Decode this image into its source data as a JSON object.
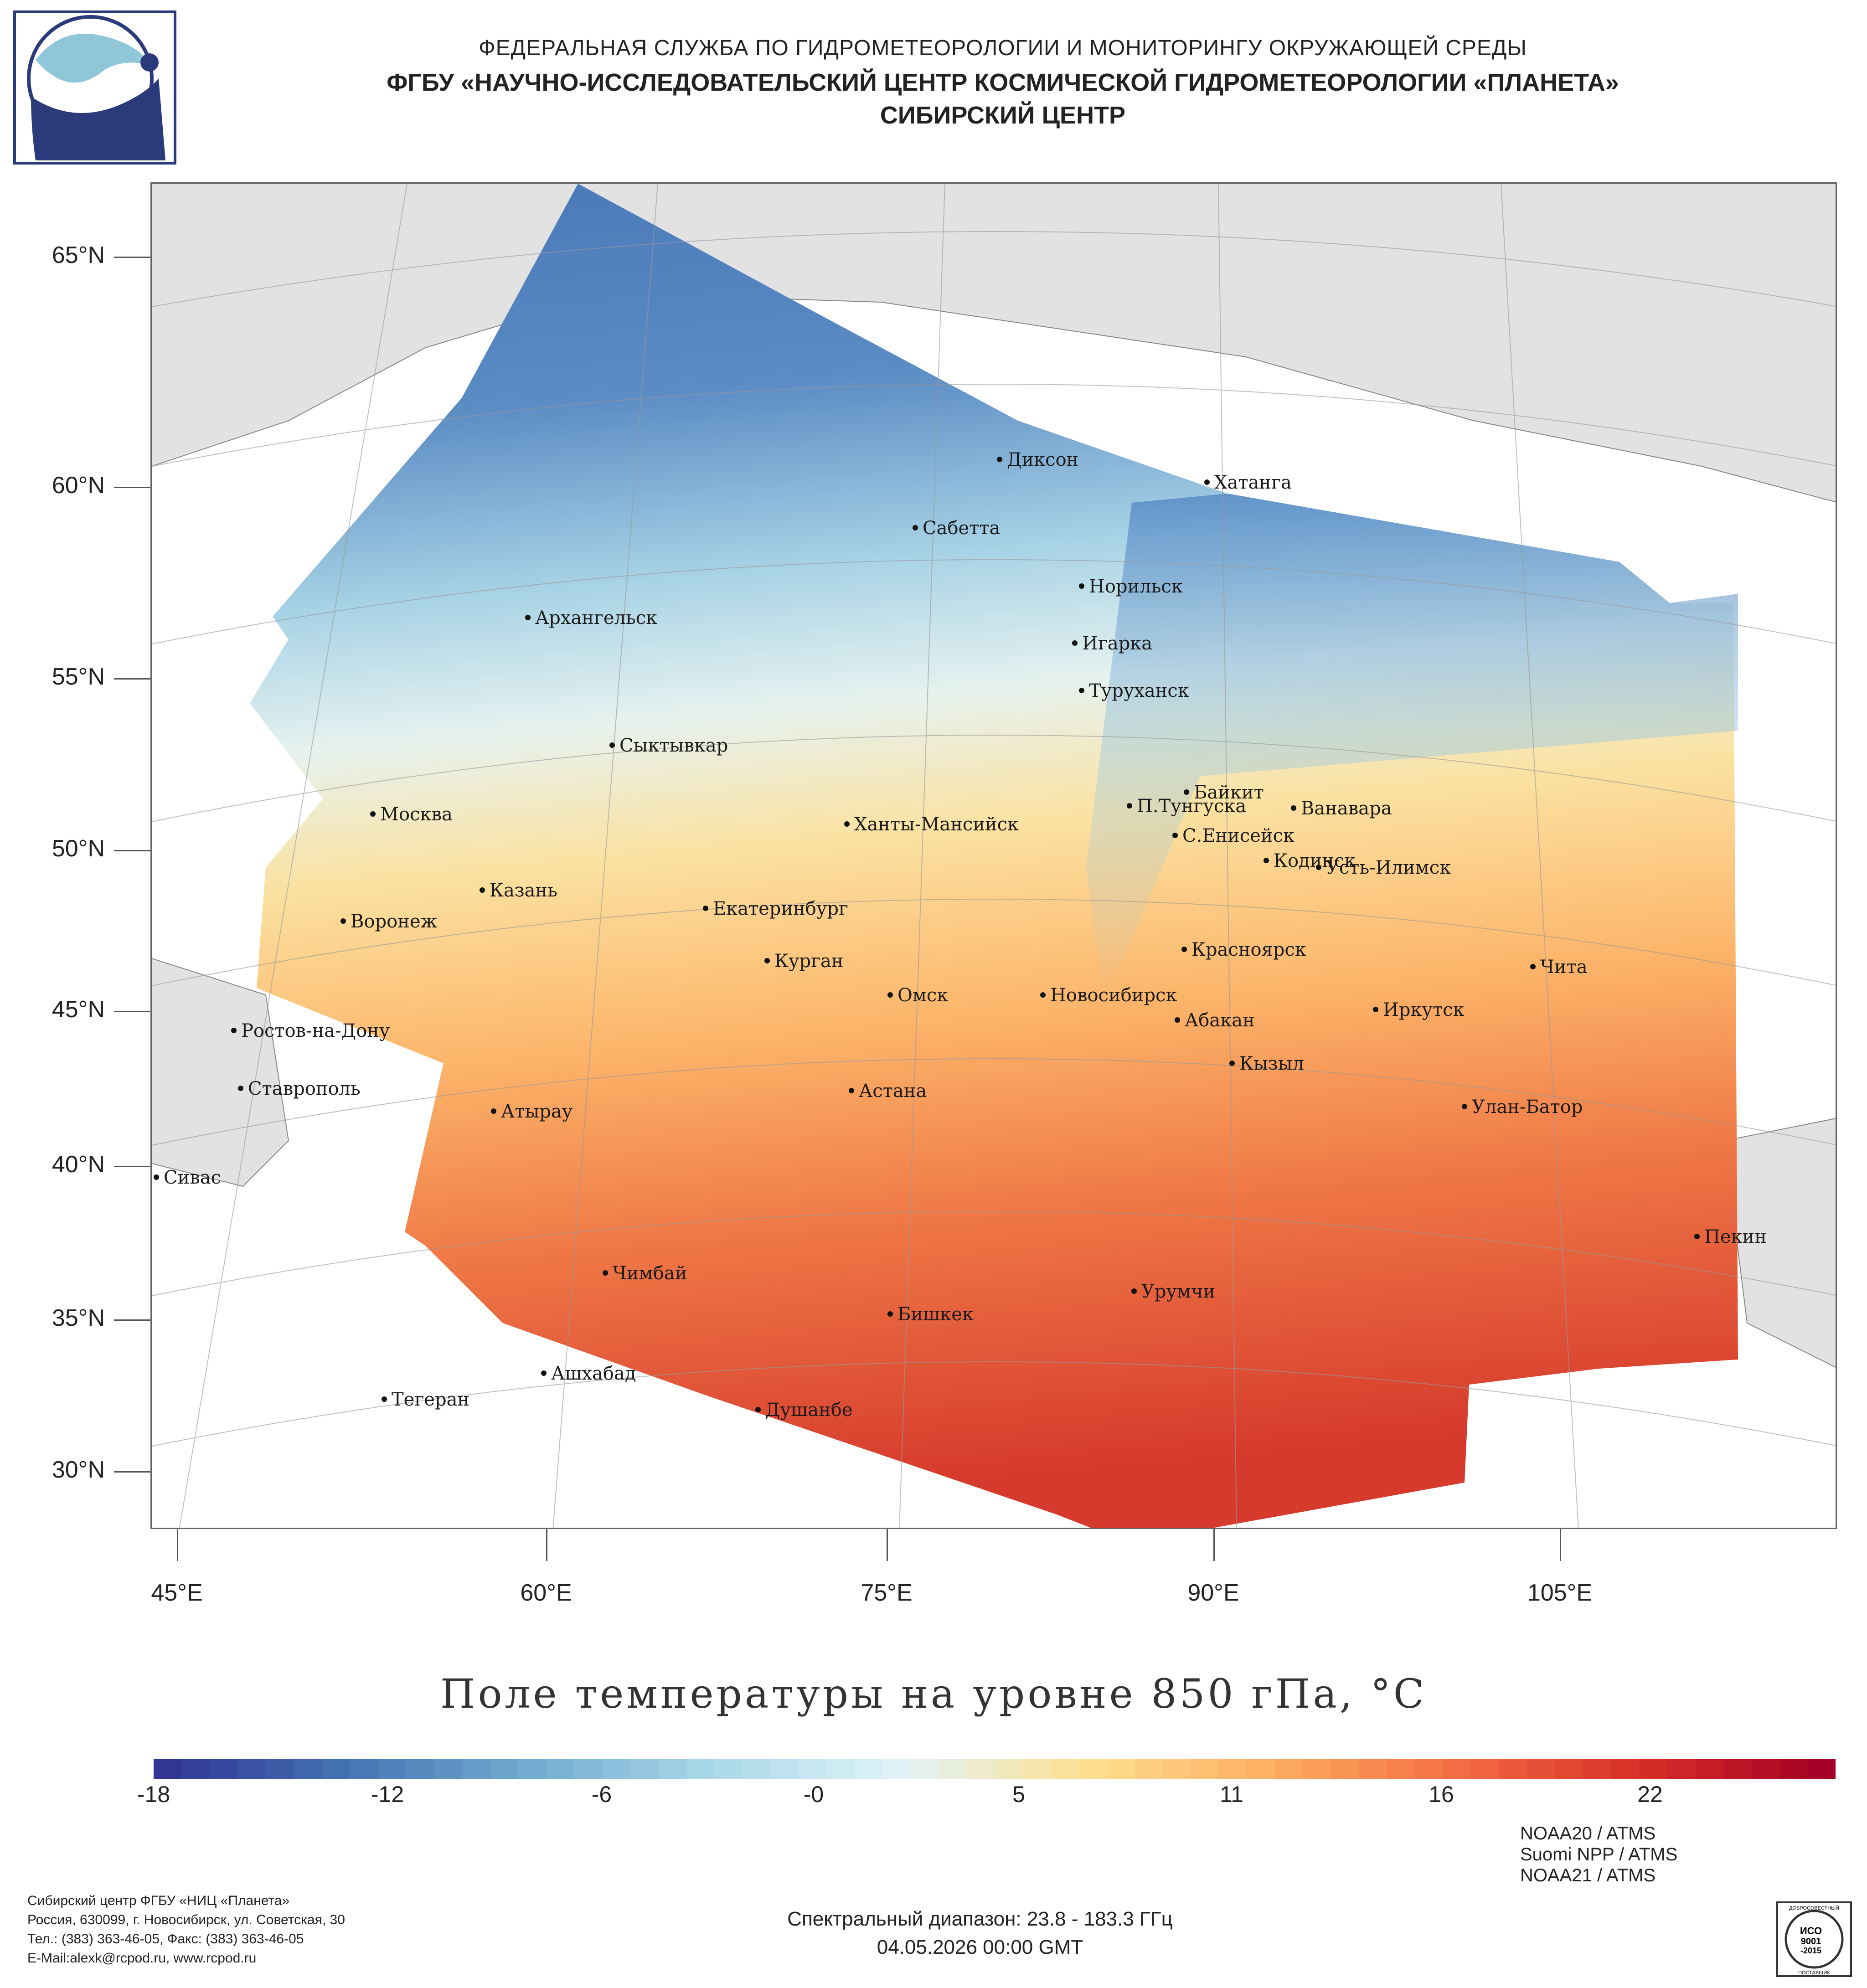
{
  "header": {
    "line1": "ФЕДЕРАЛЬНАЯ СЛУЖБА ПО ГИДРОМЕТЕОРОЛОГИИ И МОНИТОРИНГУ ОКРУЖАЮЩЕЙ СРЕДЫ",
    "line2": "ФГБУ «НАУЧНО-ИССЛЕДОВАТЕЛЬСКИЙ ЦЕНТР КОСМИЧЕСКОЙ ГИДРОМЕТЕОРОЛОГИИ «ПЛАНЕТА»",
    "line3": "СИБИРСКИЙ ЦЕНТР"
  },
  "map": {
    "lat_labels": [
      "65°N",
      "60°N",
      "55°N",
      "50°N",
      "45°N",
      "40°N",
      "35°N",
      "30°N"
    ],
    "lon_labels": [
      "45°E",
      "60°E",
      "75°E",
      "90°E",
      "105°E"
    ],
    "cities": [
      {
        "name": "Диксон"
      },
      {
        "name": "Хатанга"
      },
      {
        "name": "Сабетта"
      },
      {
        "name": "Норильск"
      },
      {
        "name": "Архангельск"
      },
      {
        "name": "Игарка"
      },
      {
        "name": "Туруханск"
      },
      {
        "name": "Сыктывкар"
      },
      {
        "name": "Байкит"
      },
      {
        "name": "П.Тунгуска"
      },
      {
        "name": "Ванавара"
      },
      {
        "name": "Москва"
      },
      {
        "name": "Ханты-Мансийск"
      },
      {
        "name": "С.Енисейск"
      },
      {
        "name": "Кодинск"
      },
      {
        "name": "Усть-Илимск"
      },
      {
        "name": "Казань"
      },
      {
        "name": "Екатеринбург"
      },
      {
        "name": "Воронеж"
      },
      {
        "name": "Красноярск"
      },
      {
        "name": "Курган"
      },
      {
        "name": "Чита"
      },
      {
        "name": "Омск"
      },
      {
        "name": "Новосибирск"
      },
      {
        "name": "Иркутск"
      },
      {
        "name": "Ростов-на-Дону"
      },
      {
        "name": "Абакан"
      },
      {
        "name": "Кызыл"
      },
      {
        "name": "Астана"
      },
      {
        "name": "Ставрополь"
      },
      {
        "name": "Улан-Батор"
      },
      {
        "name": "Атырау"
      },
      {
        "name": "Сивас"
      },
      {
        "name": "Пекин"
      },
      {
        "name": "Чимбай"
      },
      {
        "name": "Урумчи"
      },
      {
        "name": "Бишкек"
      },
      {
        "name": "Ашхабад"
      },
      {
        "name": "Тегеран"
      },
      {
        "name": "Душанбе"
      }
    ]
  },
  "legend": {
    "title": "Поле температуры на уровне 850 гПа, °C",
    "ticks": [
      "-18",
      "-12",
      "-6",
      "-0",
      "5",
      "11",
      "16",
      "22"
    ],
    "range": [
      -19,
      26
    ],
    "colors": [
      "#313695",
      "#4575b4",
      "#74add1",
      "#abd9e9",
      "#e0f3f8",
      "#fee090",
      "#fdae61",
      "#f46d43",
      "#d73027",
      "#a50026"
    ]
  },
  "footer": {
    "org": [
      "Сибирский центр ФГБУ «НИЦ «Планета»",
      "Россия, 630099, г. Новосибирск, ул. Советская, 30",
      "Тел.: (383) 363-46-05, Факс: (383) 363-46-05",
      "E-Mail:alexk@rcpod.ru, www.rcpod.ru"
    ],
    "spectral": "Спектральный диапазон: 23.8 - 183.3 ГГц",
    "datetime": "04.05.2026 00:00 GMT",
    "sensors": [
      "NOAA20 / ATMS",
      "Suomi NPP / ATMS",
      "NOAA21 / ATMS"
    ],
    "stamp": [
      "ДОБРОСОВЕСТНЫЙ",
      "ИСО",
      "9001",
      "-2015",
      "ПОСТАВЩИК"
    ]
  }
}
